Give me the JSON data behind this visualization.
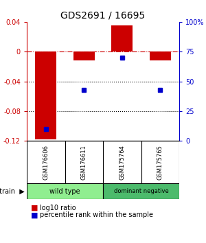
{
  "title": "GDS2691 / 16695",
  "samples": [
    "GSM176606",
    "GSM176611",
    "GSM175764",
    "GSM175765"
  ],
  "log10_ratio": [
    -0.118,
    -0.012,
    0.035,
    -0.012
  ],
  "percentile_rank": [
    10,
    43,
    70,
    43
  ],
  "groups": [
    {
      "label": "wild type",
      "color": "#90ee90",
      "indices": [
        0,
        1
      ]
    },
    {
      "label": "dominant negative",
      "color": "#4cbb6c",
      "indices": [
        2,
        3
      ]
    }
  ],
  "bar_color": "#cc0000",
  "dot_color": "#0000cc",
  "ylim_left": [
    -0.12,
    0.04
  ],
  "ylim_right": [
    0,
    100
  ],
  "yticks_left": [
    0.04,
    0.0,
    -0.04,
    -0.08,
    -0.12
  ],
  "yticks_right": [
    100,
    75,
    50,
    25,
    0
  ],
  "ytick_labels_left": [
    "0.04",
    "0",
    "-0.04",
    "-0.08",
    "-0.12"
  ],
  "ytick_labels_right": [
    "100%",
    "75",
    "50",
    "25",
    "0"
  ],
  "bar_color_hex": "#cc0000",
  "dot_color_hex": "#0000cc",
  "hline_zero_color": "#cc0000",
  "hline_dotted_color": "#000000",
  "hline_dotted_values": [
    -0.04,
    -0.08
  ],
  "background_color": "#ffffff",
  "sample_box_color": "#cccccc",
  "label_log10": "log10 ratio",
  "label_pct": "percentile rank within the sample",
  "bar_width": 0.55
}
